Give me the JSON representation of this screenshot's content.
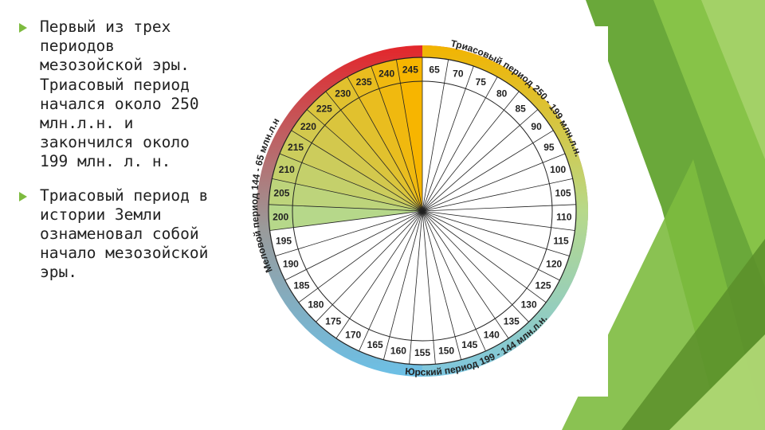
{
  "slide": {
    "bullets": [
      "Первый из трех\nпериодов\nмезозойской эры.\nТриасовый период\nначался около 250\nмлн.л.н. и\nзакончился около\n199 млн. л. н.",
      "Триасовый период в\nистории Земли\nознаменовал собой\nначало мезозойской\nэры."
    ]
  },
  "wheel": {
    "ticks": [
      65,
      70,
      75,
      80,
      85,
      90,
      95,
      100,
      105,
      110,
      115,
      120,
      125,
      130,
      135,
      140,
      145,
      150,
      155,
      160,
      165,
      170,
      175,
      180,
      185,
      190,
      195,
      200,
      205,
      210,
      215,
      220,
      225,
      230,
      235,
      240,
      245
    ],
    "periods": [
      {
        "label": "Триасовый период 250 - 199 млн.л.н.",
        "range": [
          250,
          199
        ]
      },
      {
        "label": "Юрский период 199 - 144 млн.л.н.",
        "range": [
          199,
          144
        ]
      },
      {
        "label": "Меловой период 144 - 65 млн.л.н",
        "range": [
          144,
          65
        ]
      }
    ],
    "colors": {
      "triassic_start": "#f7b500",
      "triassic_end": "#b6d88a",
      "jurassic": "#7dc6e0",
      "cretaceous_top": "#e3262b",
      "cretaceous_mid": "#9a9a9a",
      "cretaceous_bottom": "#7fc4e6"
    }
  },
  "theme": {
    "accent_green": "#7dbb3f",
    "dark_green": "#5a8f2a",
    "light_green": "#a6d36a"
  }
}
